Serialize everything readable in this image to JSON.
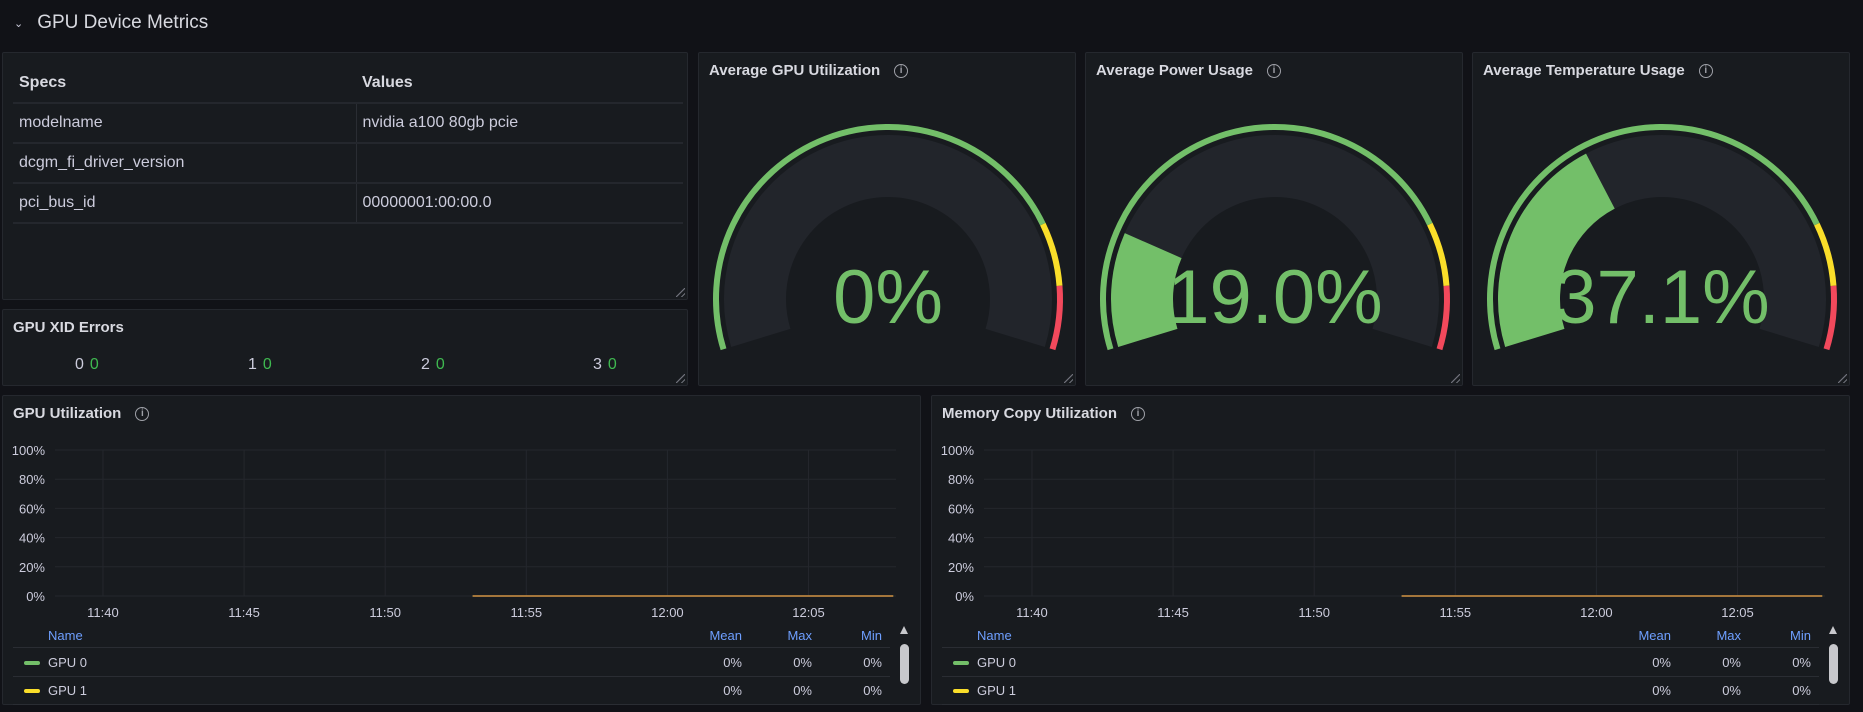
{
  "row": {
    "title": "GPU Device Metrics",
    "icon": "chevron-down-icon"
  },
  "specs": {
    "headers": [
      "Specs",
      "Values"
    ],
    "rows": [
      [
        "modelname",
        "nvidia a100 80gb pcie"
      ],
      [
        "dcgm_fi_driver_version",
        ""
      ],
      [
        "pci_bus_id",
        "00000001:00:00.0"
      ]
    ]
  },
  "xid": {
    "title": "GPU XID Errors",
    "items": [
      {
        "label": "0",
        "value": "0"
      },
      {
        "label": "1",
        "value": "0"
      },
      {
        "label": "2",
        "value": "0"
      },
      {
        "label": "3",
        "value": "0"
      }
    ]
  },
  "gauges": [
    {
      "title": "Average GPU Utilization",
      "value": 0,
      "display": "0%"
    },
    {
      "title": "Average Power Usage",
      "value": 19.0,
      "display": "19.0%"
    },
    {
      "title": "Average Temperature Usage",
      "value": 37.1,
      "display": "37.1%"
    }
  ],
  "gauge_thresholds": {
    "min": 0,
    "max": 100,
    "steps": [
      {
        "from": 0,
        "color": "#73bf69"
      },
      {
        "from": 80,
        "color": "#fade2a"
      },
      {
        "from": 90,
        "color": "#f2495c"
      }
    ]
  },
  "colors": {
    "green": "#73bf69",
    "yellow": "#fade2a",
    "red": "#f2495c",
    "legend_header": "#6e9fff"
  },
  "chart_data": [
    {
      "type": "line",
      "title": "GPU Utilization",
      "ylabel": "",
      "xlabel": "",
      "ylim": [
        0,
        100
      ],
      "yticks": [
        "0%",
        "20%",
        "40%",
        "60%",
        "80%",
        "100%"
      ],
      "xticks": [
        "11:40",
        "11:45",
        "11:50",
        "11:55",
        "12:00",
        "12:05"
      ],
      "xlim": [
        "11:38.3",
        "12:08.1"
      ],
      "grid": true,
      "series": [
        {
          "name": "GPU 0",
          "color": "#73bf69",
          "x": [
            "11:53.1",
            "12:08.0"
          ],
          "y": [
            0,
            0
          ],
          "mean": "0%",
          "max": "0%",
          "min": "0%"
        },
        {
          "name": "GPU 1",
          "color": "#fade2a",
          "x": [
            "11:53.1",
            "12:08.0"
          ],
          "y": [
            0,
            0
          ],
          "mean": "0%",
          "max": "0%",
          "min": "0%"
        }
      ],
      "legend_headers": [
        "Name",
        "Mean",
        "Max",
        "Min"
      ]
    },
    {
      "type": "line",
      "title": "Memory Copy Utilization",
      "ylabel": "",
      "xlabel": "",
      "ylim": [
        0,
        100
      ],
      "yticks": [
        "0%",
        "20%",
        "40%",
        "60%",
        "80%",
        "100%"
      ],
      "xticks": [
        "11:40",
        "11:45",
        "11:50",
        "11:55",
        "12:00",
        "12:05"
      ],
      "xlim": [
        "11:38.3",
        "12:08.1"
      ],
      "grid": true,
      "series": [
        {
          "name": "GPU 0",
          "color": "#73bf69",
          "x": [
            "11:53.1",
            "12:08.0"
          ],
          "y": [
            0,
            0
          ],
          "mean": "0%",
          "max": "0%",
          "min": "0%"
        },
        {
          "name": "GPU 1",
          "color": "#fade2a",
          "x": [
            "11:53.1",
            "12:08.0"
          ],
          "y": [
            0,
            0
          ],
          "mean": "0%",
          "max": "0%",
          "min": "0%"
        }
      ],
      "legend_headers": [
        "Name",
        "Mean",
        "Max",
        "Min"
      ]
    }
  ]
}
